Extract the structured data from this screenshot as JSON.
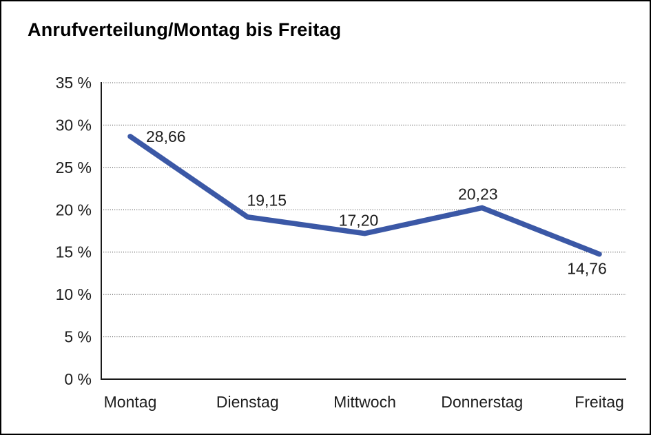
{
  "page": {
    "background": "#ffffff",
    "border_color": "#000000"
  },
  "chart_data": {
    "type": "line",
    "title": "Anrufverteilung/Montag bis Freitag",
    "categories": [
      "Montag",
      "Dienstag",
      "Mittwoch",
      "Donnerstag",
      "Freitag"
    ],
    "values": [
      28.66,
      19.15,
      17.2,
      20.23,
      14.76
    ],
    "data_labels": [
      "28,66",
      "19,15",
      "17,20",
      "20,23",
      "14,76"
    ],
    "data_label_positions": [
      "right-of-point",
      "above",
      "above",
      "above",
      "below"
    ],
    "xlabel": "",
    "ylabel": "",
    "ylim": [
      0,
      35
    ],
    "ytick_step": 5,
    "ytick_labels": [
      "0 %",
      "5 %",
      "10 %",
      "15 %",
      "20 %",
      "25 %",
      "30 %",
      "35 %"
    ],
    "grid": "horizontal-dotted",
    "legend": "none",
    "line_color": "#3B58A6",
    "axis_color": "#1a1a1a",
    "gridline_color": "#4a4a4a",
    "text_color": "#1d1d1d"
  }
}
